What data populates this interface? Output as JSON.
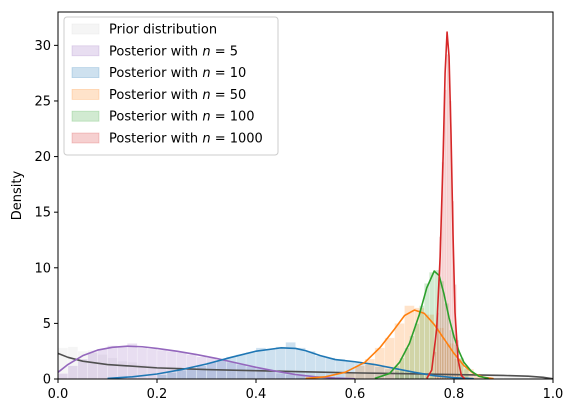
{
  "chart_data": {
    "type": "histogram_kde",
    "ylabel": "Density",
    "xlabel": "",
    "xlim": [
      0.0,
      1.0
    ],
    "ylim": [
      0,
      33
    ],
    "x_ticks": [
      "0.0",
      "0.2",
      "0.4",
      "0.6",
      "0.8",
      "1.0"
    ],
    "x_tick_values": [
      0.0,
      0.2,
      0.4,
      0.6,
      0.8,
      1.0
    ],
    "y_ticks": [
      "0",
      "5",
      "10",
      "15",
      "20",
      "25",
      "30"
    ],
    "y_tick_values": [
      0,
      5,
      10,
      15,
      20,
      25,
      30
    ],
    "grid": false,
    "legend_position": "upper-left",
    "series": [
      {
        "name": "Prior distribution",
        "label_base": "Prior distribution",
        "label_n": "",
        "hist_color": "#d3d3d3",
        "line_color": "#505050",
        "kde": [
          [
            0.0,
            2.3
          ],
          [
            0.02,
            1.95
          ],
          [
            0.05,
            1.6
          ],
          [
            0.1,
            1.3
          ],
          [
            0.2,
            1.0
          ],
          [
            0.3,
            0.85
          ],
          [
            0.4,
            0.75
          ],
          [
            0.5,
            0.65
          ],
          [
            0.6,
            0.55
          ],
          [
            0.7,
            0.48
          ],
          [
            0.8,
            0.4
          ],
          [
            0.9,
            0.32
          ],
          [
            0.95,
            0.25
          ],
          [
            0.98,
            0.15
          ],
          [
            1.0,
            0.02
          ]
        ],
        "bins": [
          [
            0.0,
            0.02,
            2.8
          ],
          [
            0.02,
            0.04,
            2.9
          ],
          [
            0.04,
            0.06,
            2.5
          ],
          [
            0.06,
            0.08,
            2.6
          ],
          [
            0.08,
            0.1,
            2.2
          ],
          [
            0.1,
            0.12,
            1.9
          ],
          [
            0.12,
            0.14,
            1.6
          ],
          [
            0.14,
            0.16,
            1.5
          ],
          [
            0.16,
            0.18,
            1.3
          ],
          [
            0.18,
            0.2,
            1.2
          ],
          [
            0.2,
            0.25,
            1.1
          ],
          [
            0.25,
            0.3,
            1.0
          ],
          [
            0.3,
            0.35,
            0.9
          ],
          [
            0.35,
            0.4,
            0.85
          ],
          [
            0.4,
            0.45,
            0.8
          ],
          [
            0.45,
            0.5,
            0.75
          ],
          [
            0.5,
            0.55,
            0.7
          ],
          [
            0.55,
            0.6,
            0.65
          ],
          [
            0.6,
            0.65,
            0.6
          ],
          [
            0.65,
            0.7,
            0.55
          ],
          [
            0.7,
            0.75,
            0.5
          ],
          [
            0.75,
            0.8,
            0.45
          ],
          [
            0.8,
            0.85,
            0.4
          ],
          [
            0.85,
            0.9,
            0.35
          ],
          [
            0.9,
            0.95,
            0.3
          ],
          [
            0.95,
            1.0,
            0.2
          ]
        ]
      },
      {
        "name": "Posterior with n = 5",
        "label_base": "Posterior with ",
        "label_n": "5",
        "hist_color": "#9467bd",
        "line_color": "#9467bd",
        "kde": [
          [
            0.0,
            0.6
          ],
          [
            0.02,
            1.3
          ],
          [
            0.05,
            2.1
          ],
          [
            0.08,
            2.6
          ],
          [
            0.11,
            2.85
          ],
          [
            0.14,
            2.95
          ],
          [
            0.17,
            2.9
          ],
          [
            0.2,
            2.75
          ],
          [
            0.24,
            2.5
          ],
          [
            0.28,
            2.2
          ],
          [
            0.32,
            1.85
          ],
          [
            0.36,
            1.45
          ],
          [
            0.4,
            1.05
          ],
          [
            0.44,
            0.7
          ],
          [
            0.48,
            0.4
          ],
          [
            0.52,
            0.2
          ],
          [
            0.56,
            0.08
          ],
          [
            0.6,
            0.02
          ]
        ],
        "bins": [
          [
            0.0,
            0.02,
            0.5
          ],
          [
            0.02,
            0.04,
            1.2
          ],
          [
            0.04,
            0.06,
            1.8
          ],
          [
            0.06,
            0.08,
            2.4
          ],
          [
            0.08,
            0.1,
            2.7
          ],
          [
            0.1,
            0.12,
            3.0
          ],
          [
            0.12,
            0.14,
            2.9
          ],
          [
            0.14,
            0.16,
            3.2
          ],
          [
            0.16,
            0.18,
            2.8
          ],
          [
            0.18,
            0.2,
            2.7
          ],
          [
            0.2,
            0.22,
            2.6
          ],
          [
            0.22,
            0.24,
            2.5
          ],
          [
            0.24,
            0.26,
            2.4
          ],
          [
            0.26,
            0.28,
            2.2
          ],
          [
            0.28,
            0.3,
            2.0
          ],
          [
            0.3,
            0.32,
            1.9
          ],
          [
            0.32,
            0.34,
            1.7
          ],
          [
            0.34,
            0.36,
            1.5
          ],
          [
            0.36,
            0.38,
            1.3
          ],
          [
            0.38,
            0.4,
            1.1
          ],
          [
            0.4,
            0.42,
            0.9
          ],
          [
            0.42,
            0.44,
            0.7
          ],
          [
            0.44,
            0.46,
            0.5
          ],
          [
            0.46,
            0.48,
            0.4
          ],
          [
            0.48,
            0.5,
            0.3
          ]
        ]
      },
      {
        "name": "Posterior with n = 10",
        "label_base": "Posterior with ",
        "label_n": "10",
        "hist_color": "#1f77b4",
        "line_color": "#1f77b4",
        "kde": [
          [
            0.1,
            0.05
          ],
          [
            0.15,
            0.2
          ],
          [
            0.2,
            0.45
          ],
          [
            0.25,
            0.85
          ],
          [
            0.3,
            1.35
          ],
          [
            0.35,
            1.95
          ],
          [
            0.4,
            2.5
          ],
          [
            0.45,
            2.8
          ],
          [
            0.48,
            2.75
          ],
          [
            0.5,
            2.55
          ],
          [
            0.53,
            2.1
          ],
          [
            0.56,
            1.75
          ],
          [
            0.6,
            1.55
          ],
          [
            0.64,
            1.3
          ],
          [
            0.68,
            0.95
          ],
          [
            0.72,
            0.6
          ],
          [
            0.76,
            0.3
          ],
          [
            0.8,
            0.12
          ],
          [
            0.84,
            0.03
          ]
        ],
        "bins": [
          [
            0.2,
            0.22,
            0.4
          ],
          [
            0.22,
            0.24,
            0.6
          ],
          [
            0.24,
            0.26,
            0.8
          ],
          [
            0.26,
            0.28,
            1.0
          ],
          [
            0.28,
            0.3,
            1.2
          ],
          [
            0.3,
            0.32,
            1.5
          ],
          [
            0.32,
            0.34,
            1.7
          ],
          [
            0.34,
            0.36,
            2.0
          ],
          [
            0.36,
            0.38,
            2.2
          ],
          [
            0.38,
            0.4,
            2.4
          ],
          [
            0.4,
            0.42,
            2.8
          ],
          [
            0.42,
            0.44,
            2.7
          ],
          [
            0.44,
            0.46,
            2.9
          ],
          [
            0.46,
            0.48,
            3.3
          ],
          [
            0.48,
            0.5,
            2.8
          ],
          [
            0.5,
            0.52,
            2.5
          ],
          [
            0.52,
            0.54,
            2.1
          ],
          [
            0.54,
            0.56,
            1.9
          ],
          [
            0.56,
            0.58,
            1.8
          ],
          [
            0.58,
            0.6,
            1.6
          ],
          [
            0.6,
            0.62,
            1.5
          ],
          [
            0.62,
            0.64,
            1.3
          ],
          [
            0.64,
            0.66,
            1.1
          ],
          [
            0.66,
            0.68,
            0.9
          ],
          [
            0.68,
            0.7,
            0.7
          ],
          [
            0.7,
            0.72,
            0.6
          ],
          [
            0.72,
            0.74,
            0.4
          ]
        ]
      },
      {
        "name": "Posterior with n = 50",
        "label_base": "Posterior with ",
        "label_n": "50",
        "hist_color": "#ff7f0e",
        "line_color": "#ff7f0e",
        "kde": [
          [
            0.5,
            0.05
          ],
          [
            0.54,
            0.2
          ],
          [
            0.58,
            0.6
          ],
          [
            0.62,
            1.5
          ],
          [
            0.65,
            2.8
          ],
          [
            0.68,
            4.5
          ],
          [
            0.7,
            5.7
          ],
          [
            0.72,
            6.2
          ],
          [
            0.74,
            5.9
          ],
          [
            0.76,
            4.9
          ],
          [
            0.78,
            3.6
          ],
          [
            0.8,
            2.3
          ],
          [
            0.82,
            1.2
          ],
          [
            0.84,
            0.5
          ],
          [
            0.86,
            0.15
          ],
          [
            0.88,
            0.03
          ]
        ],
        "bins": [
          [
            0.58,
            0.6,
            0.6
          ],
          [
            0.6,
            0.62,
            1.2
          ],
          [
            0.62,
            0.64,
            1.8
          ],
          [
            0.64,
            0.66,
            2.8
          ],
          [
            0.66,
            0.68,
            3.7
          ],
          [
            0.68,
            0.7,
            5.0
          ],
          [
            0.7,
            0.72,
            6.6
          ],
          [
            0.72,
            0.74,
            6.4
          ],
          [
            0.74,
            0.76,
            5.8
          ],
          [
            0.76,
            0.78,
            4.6
          ],
          [
            0.78,
            0.8,
            3.2
          ],
          [
            0.8,
            0.82,
            1.8
          ],
          [
            0.82,
            0.84,
            0.9
          ],
          [
            0.84,
            0.86,
            0.4
          ]
        ]
      },
      {
        "name": "Posterior with n = 100",
        "label_base": "Posterior with ",
        "label_n": "100",
        "hist_color": "#2ca02c",
        "line_color": "#2ca02c",
        "kde": [
          [
            0.64,
            0.05
          ],
          [
            0.67,
            0.5
          ],
          [
            0.69,
            1.5
          ],
          [
            0.71,
            3.2
          ],
          [
            0.73,
            5.8
          ],
          [
            0.745,
            8.2
          ],
          [
            0.76,
            9.7
          ],
          [
            0.77,
            9.3
          ],
          [
            0.78,
            7.6
          ],
          [
            0.79,
            5.5
          ],
          [
            0.8,
            3.8
          ],
          [
            0.81,
            2.5
          ],
          [
            0.82,
            1.5
          ],
          [
            0.835,
            0.7
          ],
          [
            0.85,
            0.25
          ],
          [
            0.87,
            0.05
          ]
        ],
        "bins": [
          [
            0.68,
            0.69,
            1.2
          ],
          [
            0.69,
            0.7,
            1.9
          ],
          [
            0.7,
            0.71,
            2.8
          ],
          [
            0.71,
            0.72,
            3.9
          ],
          [
            0.72,
            0.73,
            5.0
          ],
          [
            0.73,
            0.74,
            6.6
          ],
          [
            0.74,
            0.75,
            8.6
          ],
          [
            0.75,
            0.76,
            9.6
          ],
          [
            0.76,
            0.77,
            9.8
          ],
          [
            0.77,
            0.78,
            8.8
          ],
          [
            0.78,
            0.79,
            6.8
          ],
          [
            0.79,
            0.8,
            4.4
          ],
          [
            0.8,
            0.81,
            3.1
          ],
          [
            0.81,
            0.82,
            1.9
          ],
          [
            0.82,
            0.83,
            1.0
          ]
        ]
      },
      {
        "name": "Posterior with n = 1000",
        "label_base": "Posterior with ",
        "label_n": "1000",
        "hist_color": "#d62728",
        "line_color": "#d62728",
        "kde": [
          [
            0.745,
            0.05
          ],
          [
            0.755,
            0.8
          ],
          [
            0.765,
            4.5
          ],
          [
            0.772,
            11.0
          ],
          [
            0.778,
            20.0
          ],
          [
            0.782,
            27.5
          ],
          [
            0.786,
            31.2
          ],
          [
            0.79,
            29.0
          ],
          [
            0.794,
            22.0
          ],
          [
            0.798,
            13.0
          ],
          [
            0.802,
            6.0
          ],
          [
            0.808,
            1.8
          ],
          [
            0.815,
            0.3
          ],
          [
            0.822,
            0.03
          ]
        ],
        "bins": [
          [
            0.76,
            0.765,
            2.5
          ],
          [
            0.765,
            0.77,
            6.0
          ],
          [
            0.77,
            0.775,
            12.8
          ],
          [
            0.775,
            0.78,
            19.5
          ],
          [
            0.78,
            0.785,
            26.0
          ],
          [
            0.785,
            0.79,
            29.2
          ],
          [
            0.79,
            0.795,
            25.0
          ],
          [
            0.795,
            0.8,
            16.0
          ],
          [
            0.8,
            0.805,
            8.5
          ],
          [
            0.805,
            0.81,
            3.5
          ]
        ]
      }
    ]
  }
}
